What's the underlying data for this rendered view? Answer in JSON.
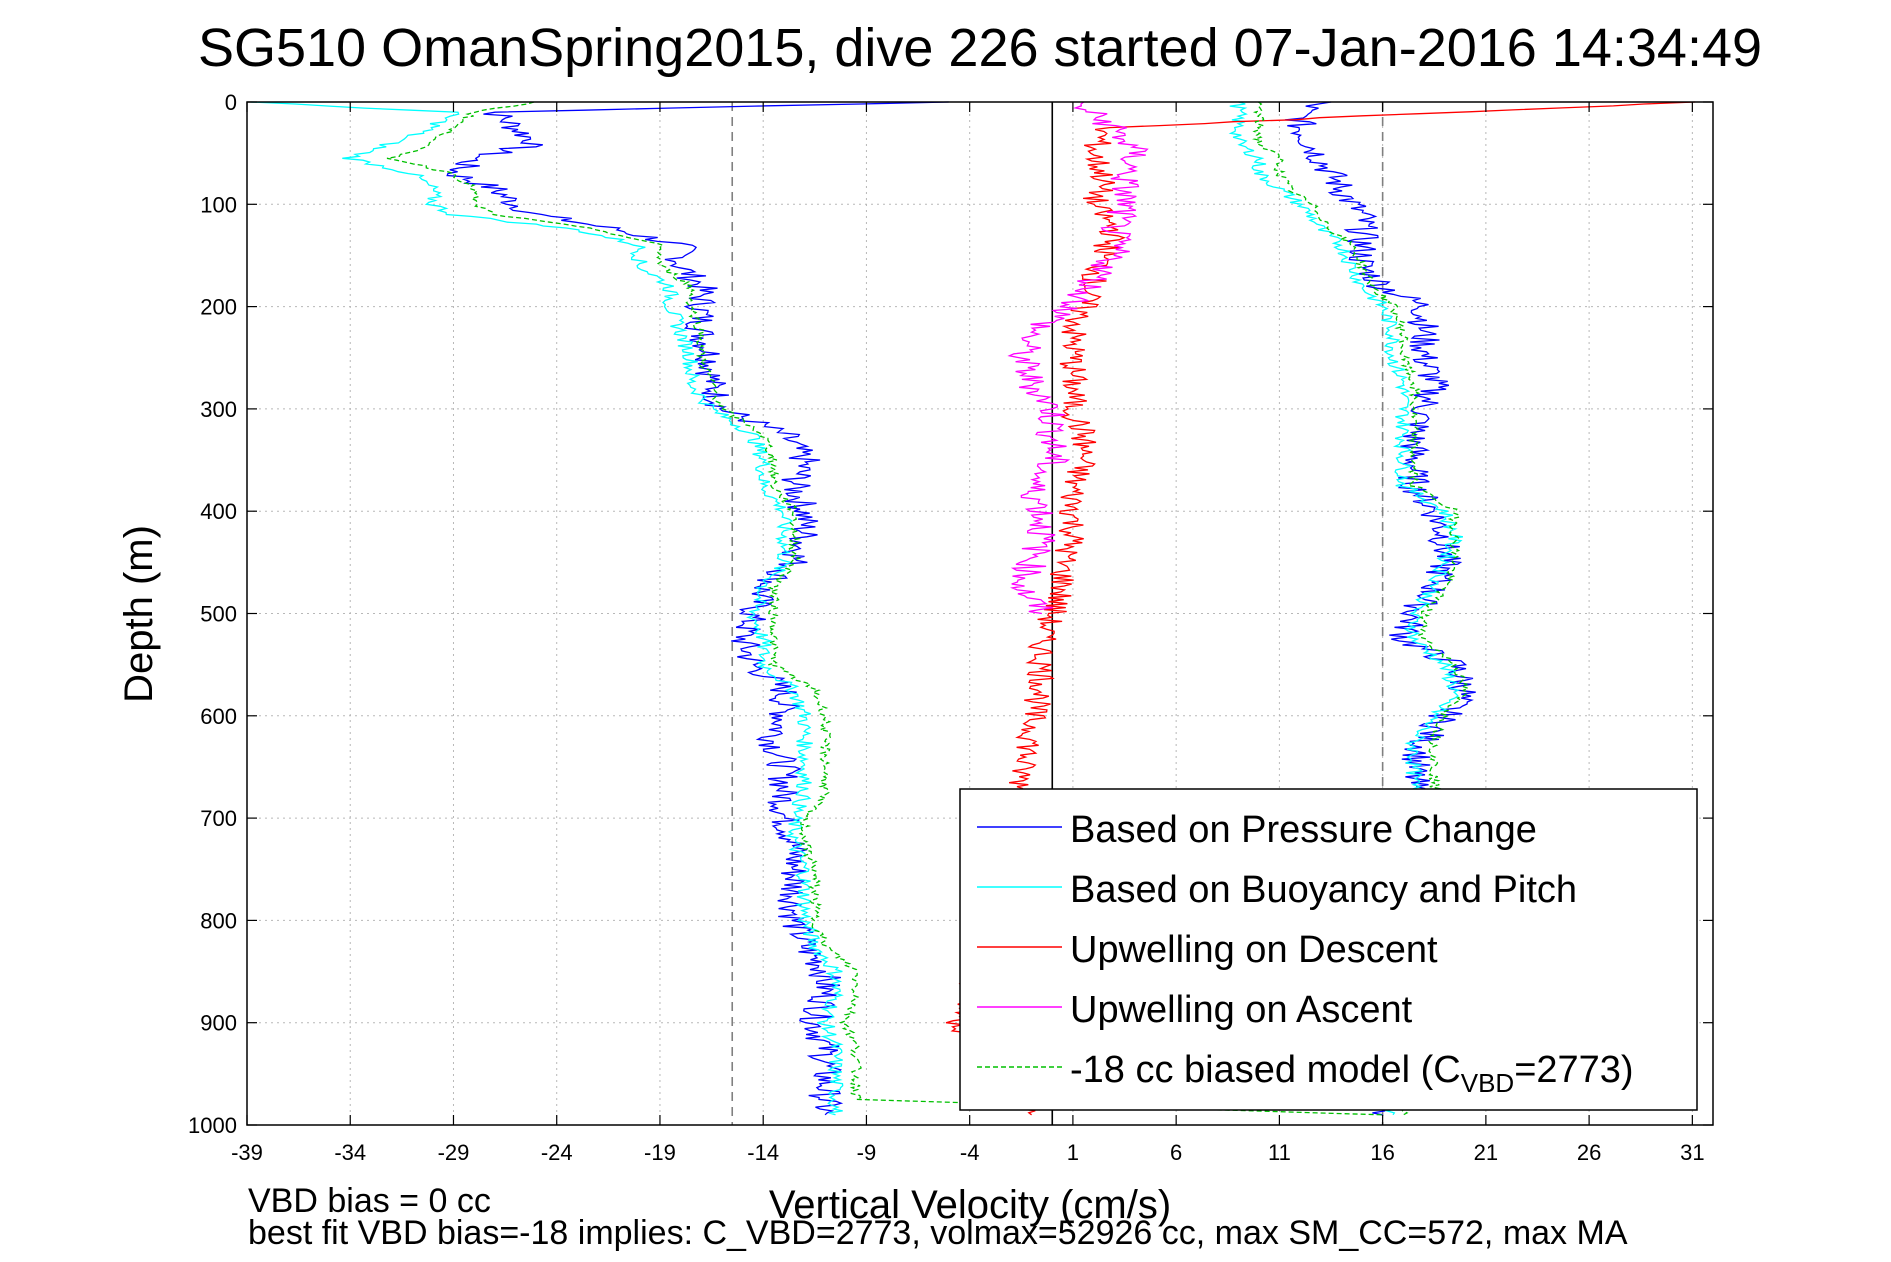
{
  "chart_data": {
    "type": "line",
    "title": "SG510 OmanSpring2015, dive 226 started 07-Jan-2016 14:34:49",
    "xlabel": "Vertical Velocity (cm/s)",
    "ylabel": "Depth (m)",
    "xlim": [
      -39,
      32
    ],
    "ylim": [
      1000,
      0
    ],
    "y_reversed": true,
    "grid": true,
    "legend_position": "bottom-right",
    "x_ticks": [
      "-39",
      "-34",
      "-29",
      "-24",
      "-19",
      "-14",
      "-9",
      "-4",
      "1",
      "6",
      "11",
      "16",
      "21",
      "26",
      "31"
    ],
    "y_ticks": [
      "0",
      "100",
      "200",
      "300",
      "400",
      "500",
      "600",
      "700",
      "800",
      "900",
      "1000"
    ],
    "reference_lines": [
      {
        "x": -15.5,
        "style": "dashed",
        "color": "#808080"
      },
      {
        "x": 0,
        "style": "solid",
        "color": "#000000"
      },
      {
        "x": 16,
        "style": "dashed",
        "color": "#808080"
      }
    ],
    "series": [
      {
        "name": "Based on Pressure Change",
        "color": "#0000ff",
        "style": "solid",
        "branches": [
          {
            "depth": [
              0,
              10,
              25,
              40,
              55,
              70,
              85,
              100,
              110,
              125,
              140,
              160,
              180,
              200,
              225,
              250,
              275,
              300,
              325,
              350,
              375,
              400,
              425,
              450,
              475,
              500,
              525,
              550,
              575,
              600,
              625,
              650,
              675,
              700,
              725,
              750,
              775,
              800,
              825,
              850,
              875,
              900,
              925,
              950,
              975,
              990
            ],
            "values": [
              -5,
              -27,
              -26,
              -25,
              -28,
              -29,
              -27,
              -26,
              -25,
              -21,
              -18,
              -18,
              -17,
              -17,
              -17,
              -16.5,
              -16.5,
              -16,
              -13,
              -12,
              -12.5,
              -12,
              -12,
              -12.5,
              -14,
              -14.5,
              -15,
              -14.5,
              -13,
              -13,
              -13.5,
              -13,
              -13,
              -13,
              -12.5,
              -12.5,
              -12.5,
              -12.5,
              -12,
              -11,
              -11,
              -11.5,
              -11,
              -11,
              -11,
              -11
            ]
          },
          {
            "depth": [
              0,
              10,
              25,
              40,
              55,
              70,
              85,
              100,
              110,
              125,
              140,
              160,
              180,
              200,
              225,
              250,
              275,
              300,
              325,
              350,
              375,
              400,
              425,
              450,
              475,
              500,
              525,
              550,
              575,
              600,
              625,
              650,
              675,
              700,
              725,
              750,
              775,
              800,
              825,
              850,
              875,
              900,
              925,
              950,
              975,
              990
            ],
            "values": [
              13,
              12,
              12,
              12.5,
              13,
              13.5,
              14,
              14.5,
              15,
              15,
              15,
              15,
              16,
              18,
              18,
              18,
              18.5,
              18,
              17.5,
              17.5,
              17.5,
              18.5,
              19,
              19,
              18.5,
              17.5,
              17,
              19.5,
              20,
              19,
              18,
              17.5,
              17.5,
              17.5,
              17.5,
              17,
              16.5,
              16.5,
              16,
              16,
              16,
              16,
              16,
              16,
              16,
              16
            ]
          }
        ]
      },
      {
        "name": "Based on Buoyancy and Pitch",
        "color": "#00ffff",
        "style": "solid",
        "branches": [
          {
            "depth": [
              0,
              10,
              25,
              40,
              55,
              70,
              85,
              100,
              110,
              125,
              140,
              160,
              180,
              200,
              225,
              250,
              275,
              300,
              325,
              350,
              375,
              400,
              425,
              450,
              475,
              500,
              525,
              550,
              575,
              600,
              625,
              650,
              675,
              700,
              725,
              750,
              775,
              800,
              825,
              850,
              875,
              900,
              925,
              950,
              975,
              990
            ],
            "values": [
              -39,
              -29,
              -30,
              -32,
              -34,
              -31,
              -30,
              -30,
              -29,
              -23,
              -20,
              -20,
              -18.5,
              -18.5,
              -18,
              -17.5,
              -17.5,
              -16.5,
              -14.5,
              -14,
              -14,
              -13,
              -13,
              -13,
              -14,
              -14.5,
              -14,
              -14,
              -12.5,
              -12,
              -12,
              -12,
              -12,
              -12.5,
              -12.5,
              -12,
              -12,
              -12,
              -11.5,
              -10.5,
              -10.5,
              -11,
              -10.5,
              -10.5,
              -10.5,
              -10.5
            ]
          },
          {
            "depth": [
              0,
              10,
              25,
              40,
              55,
              70,
              85,
              100,
              110,
              125,
              140,
              160,
              180,
              200,
              225,
              250,
              275,
              300,
              325,
              350,
              375,
              400,
              425,
              450,
              475,
              500,
              525,
              550,
              575,
              600,
              625,
              650,
              675,
              700,
              725,
              750,
              775,
              800,
              825,
              850,
              875,
              900,
              925,
              950,
              975,
              990
            ],
            "values": [
              9,
              9,
              9,
              9,
              10,
              10,
              11,
              12,
              12.5,
              13,
              14,
              14.5,
              15,
              16,
              16.5,
              16.5,
              17,
              17,
              17,
              17,
              17,
              19,
              19.5,
              19,
              18.5,
              17.5,
              17.5,
              19,
              19.5,
              18.5,
              17.5,
              17.5,
              17.5,
              17.5,
              17,
              17,
              16.5,
              16.5,
              16.5,
              16.5,
              16.5,
              16.5,
              16.5,
              16.5,
              16.5,
              16.5
            ]
          }
        ]
      },
      {
        "name": "Upwelling on Descent",
        "color": "#ff0000",
        "style": "solid",
        "depth": [
          0,
          25,
          50,
          75,
          100,
          125,
          150,
          175,
          200,
          225,
          250,
          275,
          300,
          325,
          350,
          375,
          400,
          425,
          450,
          475,
          500,
          525,
          550,
          575,
          600,
          625,
          650,
          675,
          700,
          900,
          990
        ],
        "values": [
          31,
          2.5,
          2,
          2.5,
          2,
          3,
          2.5,
          2,
          1.5,
          1,
          1,
          1,
          1,
          1.5,
          1.5,
          1,
          1,
          1,
          0.5,
          0.5,
          0,
          -0.5,
          -0.5,
          -0.5,
          -1,
          -1,
          -1.5,
          -1.5,
          -1,
          -4.5,
          -1
        ]
      },
      {
        "name": "Upwelling on Ascent",
        "color": "#ff00ff",
        "style": "solid",
        "depth": [
          0,
          25,
          50,
          75,
          100,
          125,
          150,
          175,
          200,
          225,
          250,
          275,
          300,
          325,
          350,
          375,
          400,
          425,
          450,
          475,
          500
        ],
        "values": [
          1,
          3,
          4,
          3.5,
          3.5,
          3,
          3,
          2,
          1,
          -1,
          -1.5,
          -1,
          0,
          0,
          0,
          -1,
          -0.5,
          -0.5,
          -1,
          -1.5,
          -0.5
        ]
      },
      {
        "name": "-18 cc biased model (C",
        "color": "#00c000",
        "style": "dashed",
        "branches": [
          {
            "depth": [
              0,
              10,
              25,
              40,
              55,
              70,
              85,
              100,
              110,
              125,
              140,
              160,
              180,
              200,
              225,
              250,
              275,
              300,
              325,
              350,
              375,
              400,
              425,
              450,
              475,
              500,
              525,
              550,
              575,
              600,
              625,
              650,
              675,
              700,
              725,
              750,
              775,
              800,
              825,
              850,
              875,
              900,
              925,
              950,
              975,
              990
            ],
            "values": [
              -25,
              -28,
              -29,
              -30,
              -32,
              -29,
              -28,
              -28,
              -27,
              -22,
              -19,
              -19,
              -17.5,
              -17.5,
              -17,
              -17,
              -16.5,
              -16,
              -14,
              -13.5,
              -13.5,
              -12.5,
              -12.5,
              -12.5,
              -13.5,
              -13.5,
              -13.5,
              -13.5,
              -11.5,
              -11,
              -11,
              -11,
              -11,
              -12,
              -12,
              -11.5,
              -11.5,
              -11.5,
              -11,
              -9.5,
              -9.5,
              -10,
              -9.5,
              -9.5,
              -9.5,
              16
            ]
          },
          {
            "depth": [
              0,
              10,
              25,
              40,
              55,
              70,
              85,
              100,
              110,
              125,
              140,
              160,
              180,
              200,
              225,
              250,
              275,
              300,
              325,
              350,
              375,
              400,
              425,
              450,
              475,
              500,
              525,
              550,
              575,
              600,
              625,
              650,
              675,
              700,
              725,
              750,
              775,
              800,
              825,
              850,
              875,
              900,
              925,
              950,
              975,
              990
            ],
            "values": [
              10,
              10,
              10,
              10,
              11,
              11,
              11.5,
              12.5,
              13,
              13.5,
              14.5,
              15,
              15.5,
              16.5,
              17,
              17,
              17.5,
              17.5,
              17.5,
              17.5,
              17.5,
              19.5,
              19.5,
              19.5,
              19,
              18,
              18,
              19.5,
              20,
              19,
              18.5,
              18.5,
              18.5,
              18.5,
              18,
              18,
              17.5,
              17.5,
              17,
              17,
              17,
              17,
              17,
              17,
              17,
              17
            ]
          }
        ]
      }
    ],
    "legend": [
      {
        "label": "Based on Pressure Change",
        "color": "#0000ff",
        "style": "solid"
      },
      {
        "label": "Based on Buoyancy and Pitch",
        "color": "#00ffff",
        "style": "solid"
      },
      {
        "label": "Upwelling on Descent",
        "color": "#ff0000",
        "style": "solid"
      },
      {
        "label": "Upwelling on Ascent",
        "color": "#ff00ff",
        "style": "solid"
      },
      {
        "label": "-18 cc biased model (C",
        "sub": "VBD",
        "suffix": "=2773)",
        "color": "#00c000",
        "style": "dashed"
      }
    ],
    "annotations": [
      "VBD bias = 0 cc",
      "best fit VBD bias=-18 implies: C_VBD=2773, volmax=52926 cc, max SM_CC=572, max MA"
    ]
  }
}
